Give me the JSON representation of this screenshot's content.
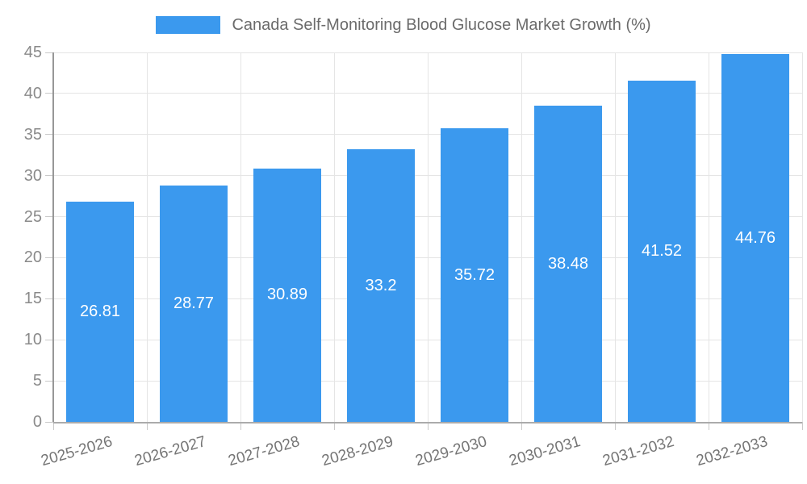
{
  "legend": {
    "title": "Canada Self-Monitoring Blood Glucose Market Growth (%)"
  },
  "chart_data": {
    "type": "bar",
    "title": "Canada Self-Monitoring Blood Glucose Market Growth (%)",
    "categories": [
      "2025-2026",
      "2026-2027",
      "2027-2028",
      "2028-2029",
      "2029-2030",
      "2030-2031",
      "2031-2032",
      "2032-2033"
    ],
    "values": [
      26.81,
      28.77,
      30.89,
      33.2,
      35.72,
      38.48,
      41.52,
      44.76
    ],
    "value_labels": [
      "26.81",
      "28.77",
      "30.89",
      "33.2",
      "35.72",
      "38.48",
      "41.52",
      "44.76"
    ],
    "xlabel": "",
    "ylabel": "",
    "ylim": [
      0,
      45
    ],
    "ytick_step": 5,
    "ytick_labels": [
      "0",
      "5",
      "10",
      "15",
      "20",
      "25",
      "30",
      "35",
      "40",
      "45"
    ],
    "grid": true,
    "legend_position": "top-center",
    "bar_color": "#3B99EE",
    "value_label_color": "#FFFFFF",
    "grid_color": "#E5E5E5",
    "y_axis_color": "#979797",
    "x_axis_color": "#ABABAB",
    "tick_color": "#C9C9C9",
    "y_tick_text_color": "#8A8A8A",
    "x_tick_text_color": "#757575",
    "legend_text_color": "#6B6B6B",
    "background_color": "#FFFFFF"
  }
}
